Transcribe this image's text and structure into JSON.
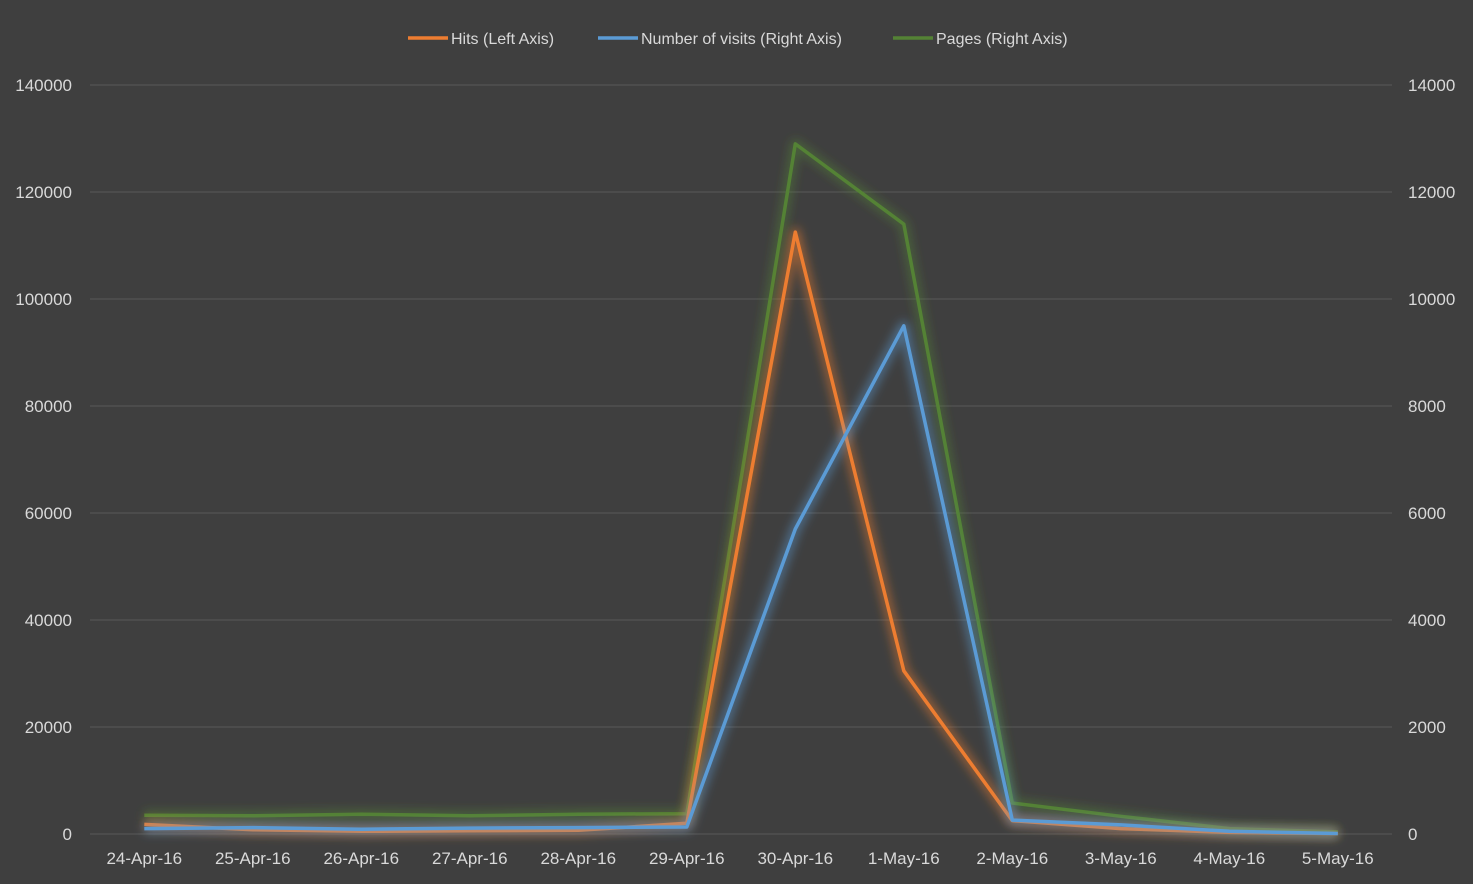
{
  "chart_data": {
    "type": "line",
    "title": "",
    "xlabel": "",
    "ylabel": "",
    "categories": [
      "24-Apr-16",
      "25-Apr-16",
      "26-Apr-16",
      "27-Apr-16",
      "28-Apr-16",
      "29-Apr-16",
      "30-Apr-16",
      "1-May-16",
      "2-May-16",
      "3-May-16",
      "4-May-16",
      "5-May-16"
    ],
    "y_left": {
      "min": 0,
      "max": 140000,
      "ticks": [
        "0",
        "20000",
        "40000",
        "60000",
        "80000",
        "100000",
        "120000",
        "140000"
      ]
    },
    "y_right": {
      "min": 0,
      "max": 14000,
      "ticks": [
        "0",
        "2000",
        "4000",
        "6000",
        "8000",
        "10000",
        "12000",
        "14000"
      ]
    },
    "grid": true,
    "legend_position": "top",
    "series": [
      {
        "name": "Hits (Left Axis)",
        "axis": "left",
        "color": "#ed7d31",
        "values": [
          1800,
          800,
          500,
          600,
          700,
          2000,
          112500,
          30500,
          2500,
          1000,
          300,
          100
        ]
      },
      {
        "name": "Number of visits (Right Axis)",
        "axis": "right",
        "color": "#5b9bd5",
        "values": [
          100,
          120,
          90,
          110,
          120,
          130,
          5700,
          9500,
          260,
          170,
          50,
          10
        ]
      },
      {
        "name": "Pages (Right Axis)",
        "axis": "right",
        "color": "#548235",
        "values": [
          350,
          340,
          370,
          340,
          370,
          380,
          12900,
          11400,
          580,
          330,
          100,
          40
        ]
      }
    ]
  }
}
